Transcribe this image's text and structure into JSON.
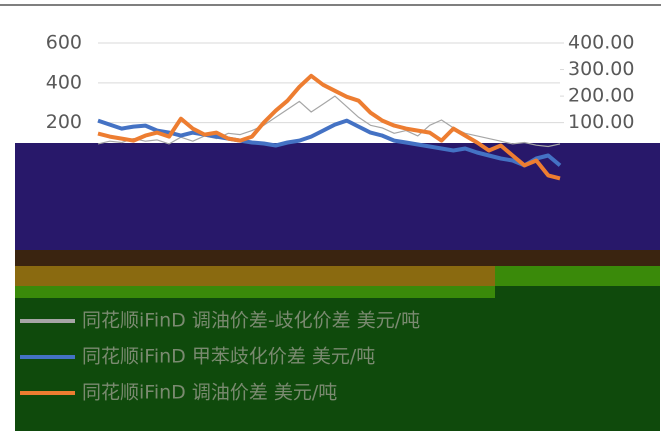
{
  "chart_data": {
    "type": "line",
    "categories": [
      null,
      null,
      null,
      null,
      null,
      null,
      null,
      null,
      null,
      null,
      null,
      null,
      null,
      null,
      null,
      null,
      null,
      null,
      null,
      null,
      null,
      null,
      null,
      null,
      null,
      null,
      null,
      null,
      null,
      null,
      null,
      null,
      null,
      null,
      null,
      null,
      null,
      null,
      null,
      null
    ],
    "series": [
      {
        "name": "同花顺iFinD 调油价差-歧化价差 美元/吨",
        "color": "#a6a6a6",
        "axis": "y2",
        "values": [
          20,
          30,
          25,
          40,
          30,
          35,
          20,
          45,
          30,
          50,
          40,
          60,
          55,
          70,
          90,
          120,
          150,
          180,
          140,
          170,
          200,
          160,
          120,
          90,
          80,
          60,
          70,
          50,
          90,
          110,
          80,
          60,
          50,
          40,
          30,
          20,
          25,
          15,
          10,
          20
        ]
      },
      {
        "name": "同花顺iFinD 甲苯歧化价差 美元/吨",
        "color": "#4472c4",
        "values": [
          210,
          190,
          170,
          180,
          185,
          160,
          150,
          135,
          150,
          140,
          130,
          120,
          110,
          100,
          95,
          85,
          100,
          110,
          130,
          160,
          190,
          210,
          180,
          150,
          135,
          110,
          100,
          90,
          80,
          70,
          60,
          70,
          50,
          35,
          20,
          10,
          -15,
          20,
          35,
          -15
        ]
      },
      {
        "name": "同花顺iFinD 调油价差 美元/吨",
        "color": "#ed7d31",
        "values": [
          145,
          130,
          120,
          110,
          135,
          150,
          130,
          220,
          170,
          140,
          150,
          120,
          110,
          130,
          200,
          260,
          310,
          380,
          435,
          390,
          360,
          330,
          310,
          250,
          210,
          185,
          170,
          160,
          150,
          110,
          170,
          135,
          100,
          60,
          85,
          35,
          -15,
          10,
          -65,
          -80
        ]
      }
    ],
    "ylim": [
      -500,
      600
    ],
    "yticks": [
      200,
      400,
      600
    ],
    "y2lim": [
      -425,
      400
    ],
    "y2ticks": [
      {
        "value": 100,
        "label": "100.00"
      },
      {
        "value": 200,
        "label": "200.00"
      },
      {
        "value": 300,
        "label": "300.00"
      },
      {
        "value": 400,
        "label": "400.00"
      }
    ],
    "grid": true
  }
}
